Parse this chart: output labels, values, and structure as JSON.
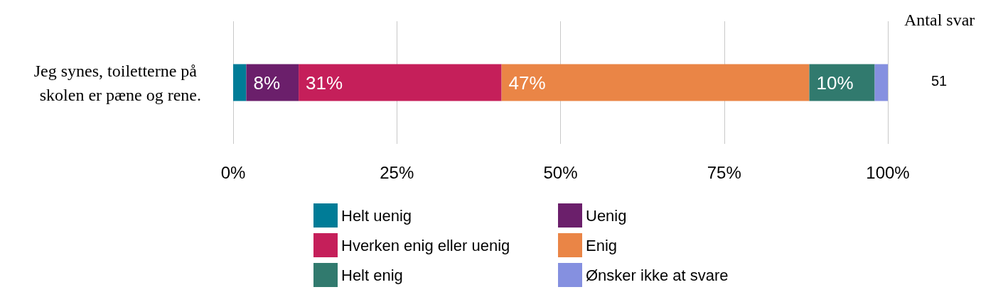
{
  "chart_data": {
    "type": "bar",
    "orientation": "horizontal",
    "stacked": true,
    "categories": [
      "Jeg synes, toiletterne på skolen er pæne og rene."
    ],
    "series": [
      {
        "name": "Helt uenig",
        "color": "#007c97",
        "values": [
          2
        ],
        "value_labels": [
          null
        ]
      },
      {
        "name": "Uenig",
        "color": "#6b1f6b",
        "values": [
          8
        ],
        "value_labels": [
          "8%"
        ]
      },
      {
        "name": "Hverken enig eller uenig",
        "color": "#c51f5a",
        "values": [
          31
        ],
        "value_labels": [
          "31%"
        ]
      },
      {
        "name": "Enig",
        "color": "#ea8546",
        "values": [
          47
        ],
        "value_labels": [
          "47%"
        ]
      },
      {
        "name": "Helt enig",
        "color": "#317a6e",
        "values": [
          10
        ],
        "value_labels": [
          "10%"
        ]
      },
      {
        "name": "Ønsker ikke at svare",
        "color": "#8590e0",
        "values": [
          2
        ],
        "value_labels": [
          null
        ]
      }
    ],
    "xlim": [
      0,
      100
    ],
    "xticks": [
      {
        "value": 0,
        "label": "0%"
      },
      {
        "value": 25,
        "label": "25%"
      },
      {
        "value": 50,
        "label": "50%"
      },
      {
        "value": 75,
        "label": "75%"
      },
      {
        "value": 100,
        "label": "100%"
      }
    ],
    "grid": "x",
    "legend": "bottom",
    "annotations": [
      "Antal svar",
      "51"
    ]
  }
}
